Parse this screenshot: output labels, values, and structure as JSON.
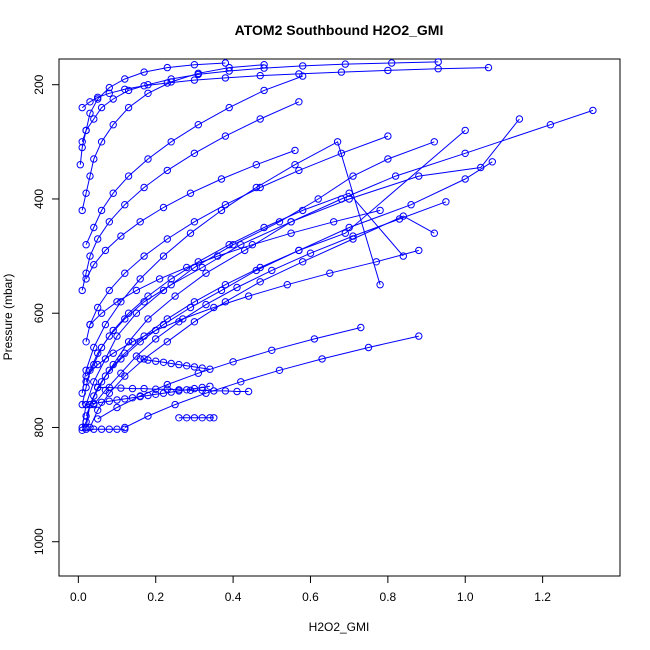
{
  "chart_data": {
    "type": "line",
    "title": "ATOM2 Southbound H2O2_GMI",
    "xlabel": "H2O2_GMI",
    "ylabel": "Pressure (mbar)",
    "xlim": [
      -0.05,
      1.4
    ],
    "ylim": [
      1060,
      155
    ],
    "y_reversed": true,
    "x_ticks": [
      0.0,
      0.2,
      0.4,
      0.6,
      0.8,
      1.0,
      1.2
    ],
    "x_tick_labels": [
      "0.0",
      "0.2",
      "0.4",
      "0.6",
      "0.8",
      "1.0",
      "1.2"
    ],
    "y_ticks": [
      200,
      400,
      600,
      800,
      1000
    ],
    "y_tick_labels": [
      "200",
      "400",
      "600",
      "800",
      "1000"
    ],
    "grid": false,
    "legend": "none",
    "marker": "open-circle",
    "color": "#0000ff",
    "series": [
      {
        "x": [
          0.01,
          0.02,
          0.04,
          0.07,
          0.1,
          0.15,
          0.22,
          0.3,
          0.4,
          0.52,
          0.62,
          0.71,
          0.8,
          0.92
        ],
        "y": [
          800,
          760,
          720,
          680,
          640,
          600,
          560,
          520,
          480,
          440,
          400,
          360,
          330,
          300
        ]
      },
      {
        "x": [
          0.02,
          0.03,
          0.06,
          0.09,
          0.13,
          0.18,
          0.25,
          0.33,
          0.43,
          0.55,
          0.68,
          0.82,
          1.0,
          1.22,
          1.33
        ],
        "y": [
          800,
          760,
          720,
          690,
          650,
          610,
          570,
          530,
          490,
          440,
          400,
          360,
          320,
          270,
          245
        ]
      },
      {
        "x": [
          0.01,
          0.02,
          0.03,
          0.05,
          0.08,
          0.12,
          0.17,
          0.24,
          0.32,
          0.42,
          0.55,
          0.7,
          0.88,
          1.04,
          1.14
        ],
        "y": [
          760,
          730,
          700,
          670,
          640,
          610,
          580,
          550,
          520,
          480,
          440,
          400,
          360,
          345,
          260
        ]
      },
      {
        "x": [
          0.02,
          0.04,
          0.07,
          0.11,
          0.16,
          0.22,
          0.29,
          0.37,
          0.46,
          0.57,
          0.7,
          0.86,
          1.0,
          1.07
        ],
        "y": [
          780,
          745,
          710,
          680,
          650,
          620,
          590,
          560,
          525,
          490,
          450,
          410,
          365,
          335
        ]
      },
      {
        "x": [
          0.03,
          0.05,
          0.08,
          0.12,
          0.17,
          0.23,
          0.3,
          0.38,
          0.47,
          0.58,
          0.71,
          0.84,
          0.92
        ],
        "y": [
          800,
          770,
          740,
          710,
          680,
          650,
          615,
          580,
          545,
          510,
          470,
          430,
          460
        ]
      },
      {
        "x": [
          0.02,
          0.04,
          0.06,
          0.09,
          0.13,
          0.18,
          0.24,
          0.31,
          0.39,
          0.48,
          0.58,
          0.7,
          0.84
        ],
        "y": [
          720,
          690,
          660,
          630,
          600,
          570,
          540,
          510,
          480,
          450,
          420,
          390,
          500
        ]
      },
      {
        "x": [
          0.01,
          0.02,
          0.04,
          0.07,
          0.11,
          0.16,
          0.22,
          0.29,
          0.37,
          0.46,
          0.56,
          0.67,
          0.78
        ],
        "y": [
          740,
          700,
          660,
          620,
          580,
          540,
          500,
          460,
          420,
          380,
          340,
          300,
          550
        ]
      },
      {
        "x": [
          0.01,
          0.02,
          0.03,
          0.05,
          0.08,
          0.12,
          0.17,
          0.23,
          0.3,
          0.38,
          0.47,
          0.57,
          0.69,
          1.0
        ],
        "y": [
          805,
          790,
          760,
          730,
          700,
          670,
          640,
          610,
          580,
          550,
          520,
          490,
          460,
          280
        ]
      },
      {
        "x": [
          0.04,
          0.07,
          0.11,
          0.15,
          0.2,
          0.26,
          0.33,
          0.41,
          0.5,
          0.6,
          0.71,
          0.83,
          0.95
        ],
        "y": [
          760,
          735,
          705,
          675,
          645,
          615,
          585,
          555,
          525,
          495,
          465,
          435,
          405
        ]
      },
      {
        "x": [
          0.02,
          0.03,
          0.05,
          0.08,
          0.12,
          0.17,
          0.23,
          0.3,
          0.38,
          0.47,
          0.57,
          0.68,
          0.8
        ],
        "y": [
          650,
          620,
          590,
          560,
          530,
          500,
          470,
          440,
          410,
          380,
          350,
          320,
          290
        ]
      },
      {
        "x": [
          0.01,
          0.02,
          0.03,
          0.05,
          0.08,
          0.12,
          0.17,
          0.23,
          0.3,
          0.38,
          0.47,
          0.57
        ],
        "y": [
          560,
          530,
          500,
          470,
          440,
          410,
          380,
          350,
          320,
          290,
          260,
          230
        ]
      },
      {
        "x": [
          0.02,
          0.04,
          0.06,
          0.09,
          0.13,
          0.18,
          0.24,
          0.31,
          0.39,
          0.48,
          0.58
        ],
        "y": [
          480,
          450,
          420,
          390,
          360,
          330,
          300,
          270,
          240,
          210,
          185
        ]
      },
      {
        "x": [
          0.01,
          0.02,
          0.03,
          0.04,
          0.06,
          0.09,
          0.13,
          0.18,
          0.24,
          0.31,
          0.39,
          0.48
        ],
        "y": [
          420,
          390,
          360,
          330,
          300,
          270,
          240,
          215,
          195,
          180,
          170,
          165
        ]
      },
      {
        "x": [
          0.005,
          0.01,
          0.02,
          0.03,
          0.05,
          0.08,
          0.12,
          0.17,
          0.23,
          0.3,
          0.38
        ],
        "y": [
          340,
          310,
          280,
          250,
          225,
          205,
          190,
          178,
          170,
          165,
          162
        ]
      },
      {
        "x": [
          0.01,
          0.02,
          0.04,
          0.06,
          0.09,
          0.13,
          0.18,
          0.24,
          0.31,
          0.39,
          0.48,
          0.58,
          0.69,
          0.81,
          0.93
        ],
        "y": [
          300,
          280,
          260,
          240,
          225,
          210,
          200,
          190,
          182,
          176,
          171,
          167,
          164,
          162,
          160
        ]
      },
      {
        "x": [
          0.02,
          0.05,
          0.09,
          0.14,
          0.2,
          0.27,
          0.35,
          0.44,
          0.54,
          0.65,
          0.77,
          0.88
        ],
        "y": [
          710,
          690,
          670,
          650,
          630,
          610,
          590,
          570,
          550,
          530,
          510,
          490
        ]
      },
      {
        "x": [
          0.05,
          0.1,
          0.16,
          0.23,
          0.31,
          0.4,
          0.5,
          0.61,
          0.73
        ],
        "y": [
          785,
          765,
          745,
          725,
          705,
          685,
          665,
          645,
          625
        ]
      },
      {
        "x": [
          0.12,
          0.18,
          0.25,
          0.33,
          0.42,
          0.52,
          0.63,
          0.75,
          0.88
        ],
        "y": [
          800,
          780,
          760,
          740,
          720,
          700,
          680,
          660,
          640
        ]
      },
      {
        "x": [
          0.03,
          0.06,
          0.1,
          0.15,
          0.21,
          0.28,
          0.36,
          0.45,
          0.55,
          0.66,
          0.78
        ],
        "y": [
          620,
          600,
          580,
          560,
          540,
          520,
          500,
          480,
          460,
          440,
          420
        ]
      },
      {
        "x": [
          0.02,
          0.04,
          0.07,
          0.11,
          0.16,
          0.22,
          0.29,
          0.37,
          0.46,
          0.56
        ],
        "y": [
          540,
          515,
          490,
          465,
          440,
          415,
          390,
          365,
          340,
          315
        ]
      },
      {
        "x": [
          0.01,
          0.03,
          0.05,
          0.08,
          0.12,
          0.17,
          0.23,
          0.3,
          0.38,
          0.47,
          0.57,
          0.68,
          0.8,
          0.93,
          1.06
        ],
        "y": [
          240,
          230,
          222,
          215,
          208,
          202,
          197,
          192,
          188,
          184,
          181,
          178,
          175,
          172,
          170
        ]
      },
      {
        "x": [
          0.16,
          0.18,
          0.2,
          0.22,
          0.24,
          0.26,
          0.28,
          0.3,
          0.32,
          0.34
        ],
        "y": [
          680,
          682,
          684,
          686,
          688,
          690,
          692,
          694,
          696,
          698
        ]
      },
      {
        "x": [
          0.05,
          0.08,
          0.11,
          0.14,
          0.17,
          0.2,
          0.23,
          0.26,
          0.29,
          0.32,
          0.35,
          0.38,
          0.41,
          0.44
        ],
        "y": [
          730,
          730,
          731,
          732,
          732,
          733,
          733,
          734,
          735,
          735,
          736,
          736,
          737,
          737
        ]
      },
      {
        "x": [
          0.02,
          0.04,
          0.06,
          0.08,
          0.1,
          0.12
        ],
        "y": [
          803,
          803,
          803,
          803,
          803,
          803
        ]
      },
      {
        "x": [
          0.26,
          0.28,
          0.3,
          0.32,
          0.34,
          0.35
        ],
        "y": [
          783,
          783,
          783,
          783,
          783,
          783
        ]
      },
      {
        "x": [
          0.02,
          0.04,
          0.06,
          0.08,
          0.1,
          0.12,
          0.14,
          0.16,
          0.18,
          0.2,
          0.22,
          0.24,
          0.26,
          0.28,
          0.3,
          0.32,
          0.34
        ],
        "y": [
          760,
          758,
          756,
          754,
          752,
          750,
          748,
          746,
          744,
          742,
          740,
          738,
          736,
          734,
          732,
          730,
          728
        ]
      }
    ]
  }
}
